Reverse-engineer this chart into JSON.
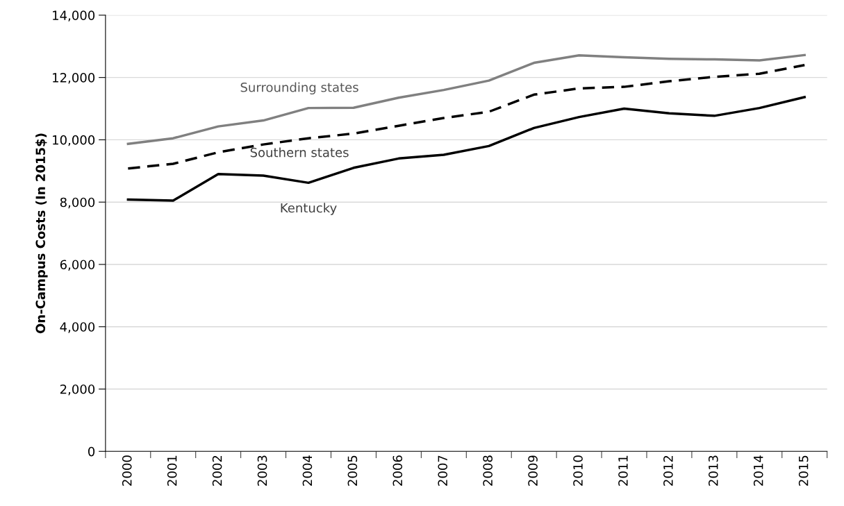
{
  "chart_data": {
    "type": "line",
    "ylabel": "On-Campus Costs (In 2015$)",
    "categories": [
      "2000",
      "2001",
      "2002",
      "2003",
      "2004",
      "2005",
      "2006",
      "2007",
      "2008",
      "2009",
      "2010",
      "2011",
      "2012",
      "2013",
      "2014",
      "2015"
    ],
    "series": [
      {
        "name": "Surrounding states",
        "color": "#808080",
        "line_style": "solid",
        "values": [
          9870,
          10050,
          10430,
          10620,
          11020,
          11030,
          11350,
          11600,
          11900,
          12470,
          12710,
          12650,
          12600,
          12580,
          12550,
          12720
        ]
      },
      {
        "name": "Southern states",
        "color": "#000000",
        "line_style": "dashed",
        "values": [
          9080,
          9230,
          9600,
          9850,
          10050,
          10200,
          10450,
          10700,
          10900,
          11450,
          11650,
          11700,
          11880,
          12020,
          12120,
          12400
        ]
      },
      {
        "name": "Kentucky",
        "color": "#000000",
        "line_style": "solid",
        "values": [
          8080,
          8050,
          8900,
          8850,
          8620,
          9100,
          9400,
          9520,
          9800,
          10380,
          10730,
          11000,
          10850,
          10770,
          11020,
          11370
        ]
      }
    ],
    "ylim": [
      0,
      14000
    ],
    "yticks": [
      {
        "value": 0,
        "label": "0"
      },
      {
        "value": 2000,
        "label": "2,000"
      },
      {
        "value": 4000,
        "label": "4,000"
      },
      {
        "value": 6000,
        "label": "6,000"
      },
      {
        "value": 8000,
        "label": "8,000"
      },
      {
        "value": 10000,
        "label": "10,000"
      },
      {
        "value": 12000,
        "label": "12,000"
      },
      {
        "value": 14000,
        "label": "14,000"
      }
    ],
    "grid": "y",
    "legend": false,
    "marker": "none"
  }
}
